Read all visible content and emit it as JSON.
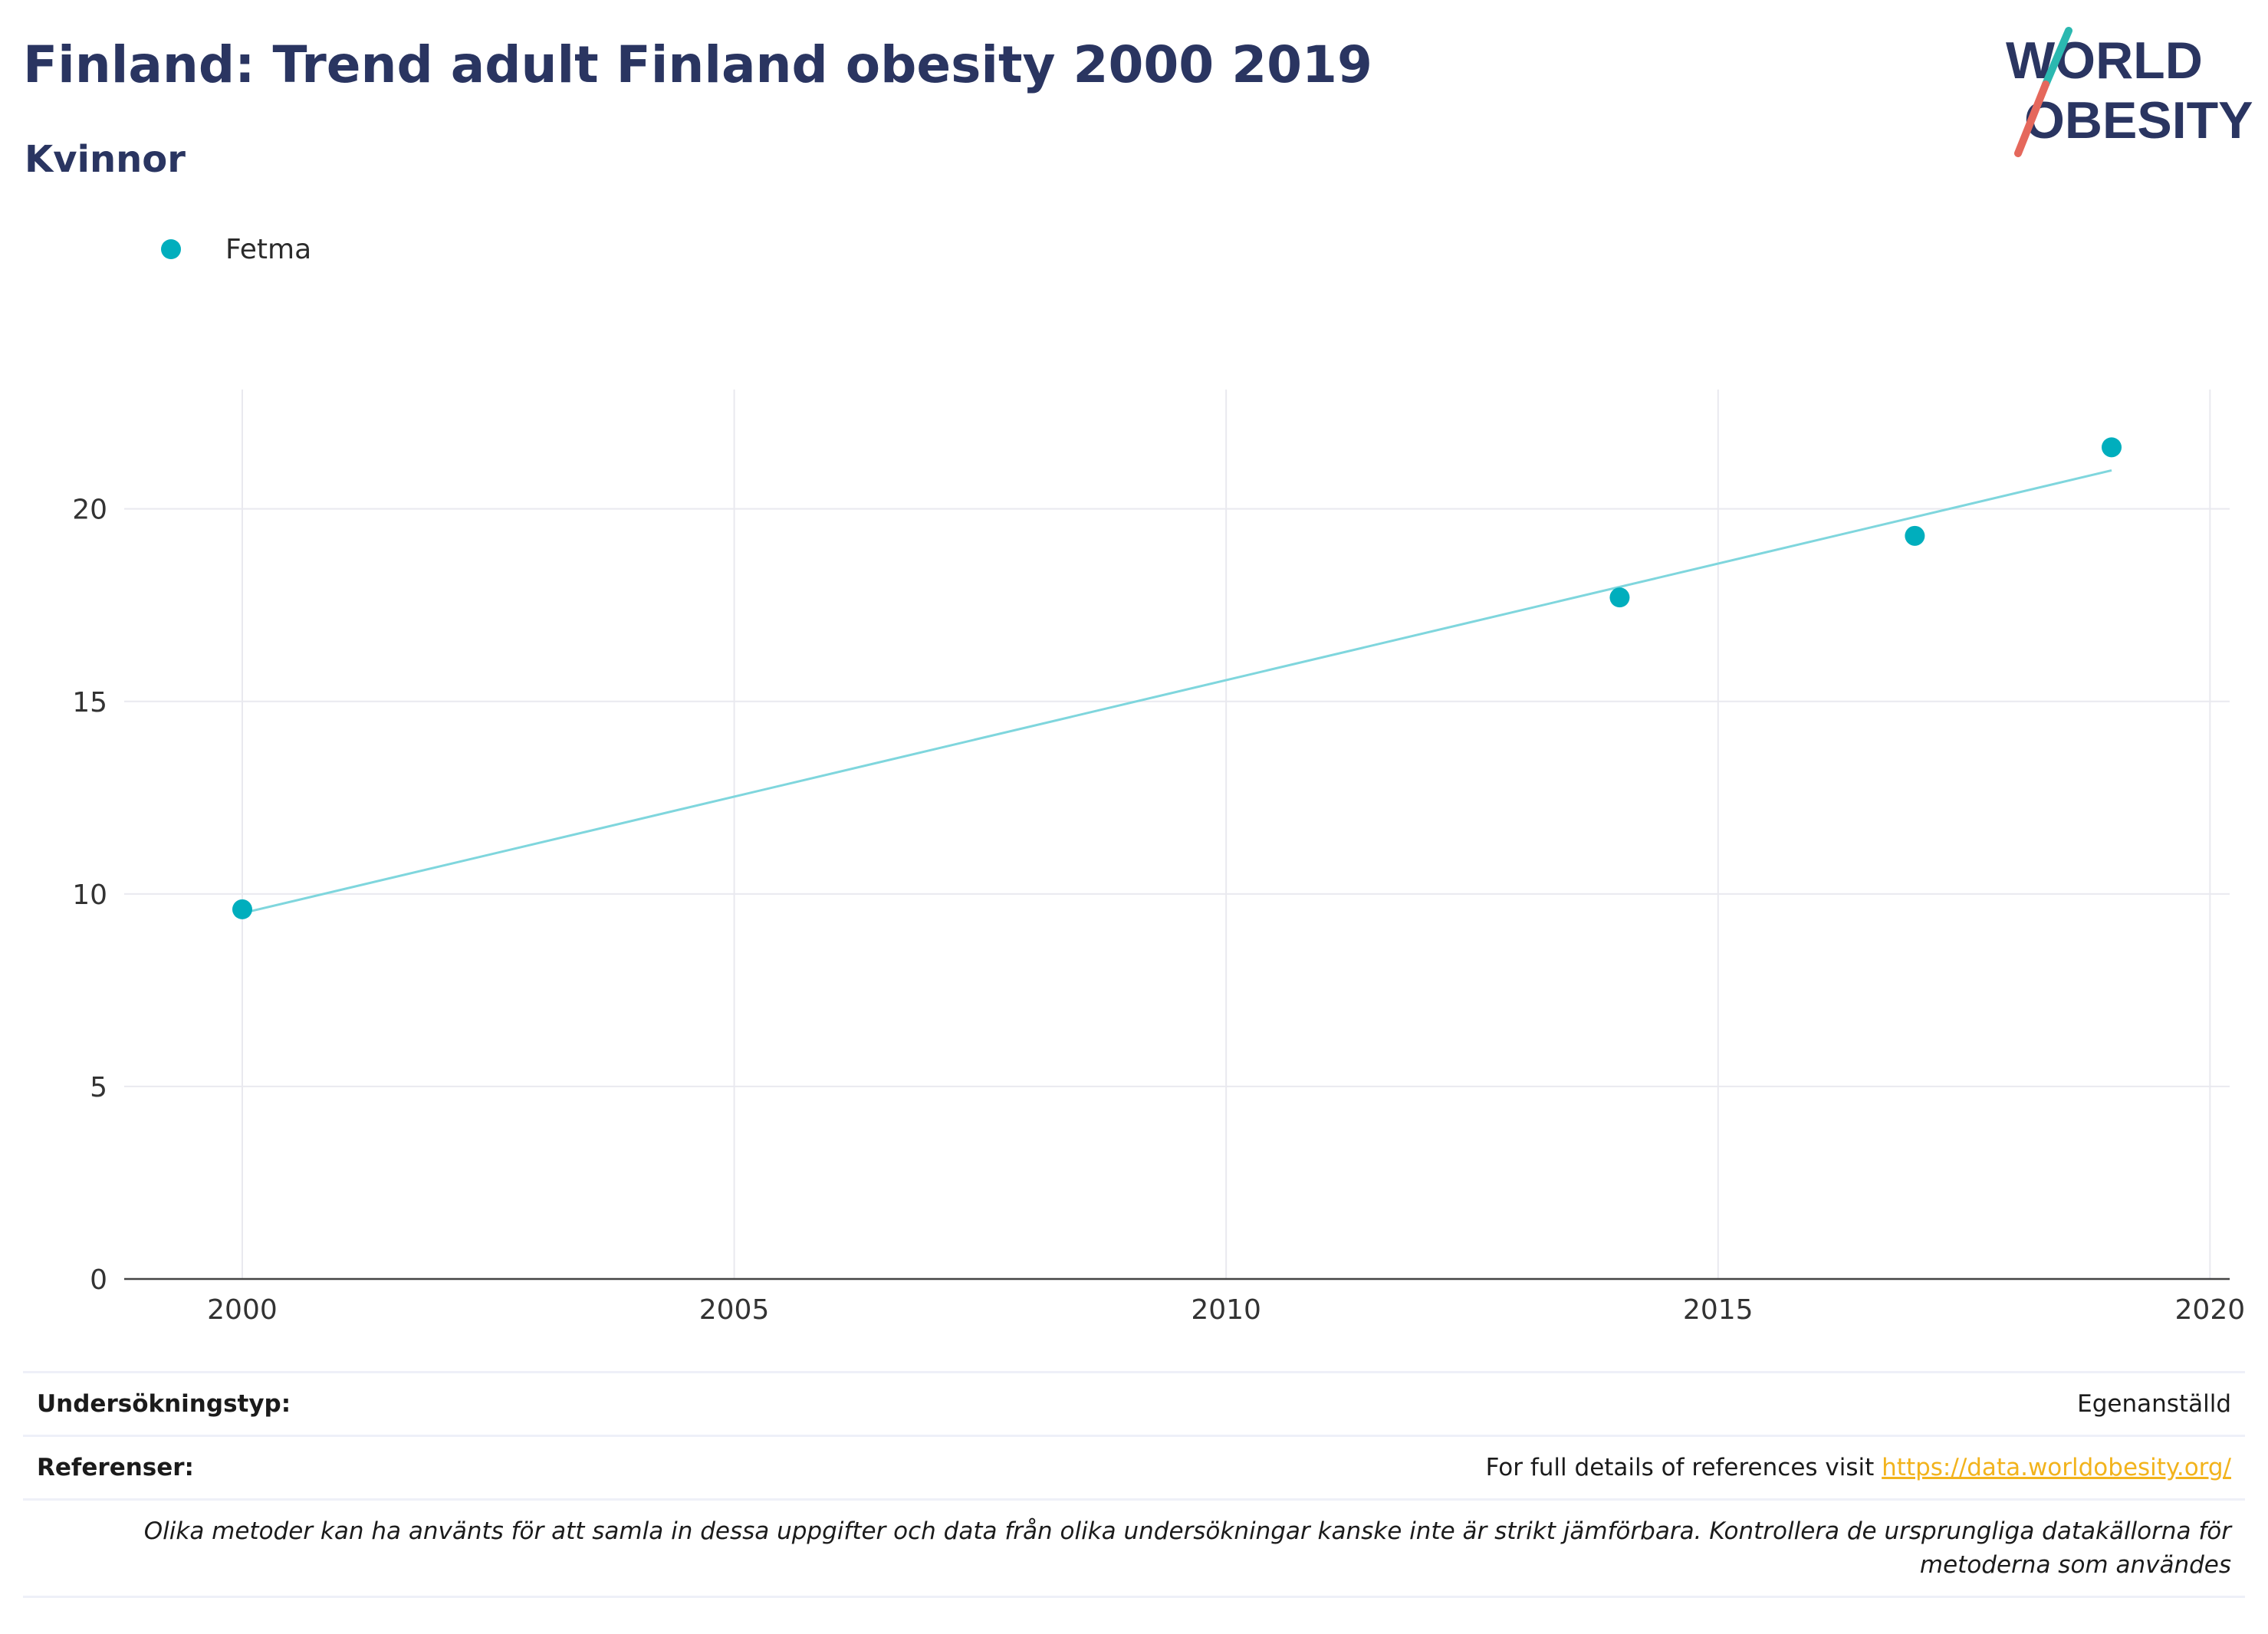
{
  "header": {
    "title": "Finland: Trend adult Finland obesity 2000 2019",
    "subtitle": "Kvinnor"
  },
  "logo": {
    "line1": "WORLD",
    "line2": "OBESITY"
  },
  "colors": {
    "accent": "#00aebd",
    "trend": "#7fd6dd",
    "title": "#2a3561",
    "link": "#f2b31c",
    "logo_teal": "#2bb8b0",
    "logo_red": "#e5685c"
  },
  "chart_data": {
    "type": "scatter",
    "legend": {
      "placement": "top-left"
    },
    "series": [
      {
        "name": "Fetma",
        "x": [
          2000,
          2014,
          2017,
          2019
        ],
        "y": [
          9.6,
          17.7,
          19.3,
          21.6
        ]
      }
    ],
    "trendline": {
      "x": [
        2000,
        2019
      ],
      "y": [
        9.5,
        21.0
      ]
    },
    "xlim": [
      1998.8,
      2020.2
    ],
    "ylim": [
      0,
      23.1
    ],
    "xticks": [
      2000,
      2005,
      2010,
      2015,
      2020
    ],
    "yticks": [
      0,
      5,
      10,
      15,
      20
    ],
    "grid": true
  },
  "footer": {
    "rows": [
      {
        "label": "Undersökningstyp:",
        "value": "Egenanställd"
      }
    ],
    "references": {
      "label": "Referenser:",
      "text": "For full details of references visit ",
      "link": "https://data.worldobesity.org/"
    },
    "note": "Olika metoder kan ha använts för att samla in dessa uppgifter och data från olika undersökningar kanske inte är strikt jämförbara. Kontrollera de ursprungliga datakällorna för metoderna som användes"
  }
}
